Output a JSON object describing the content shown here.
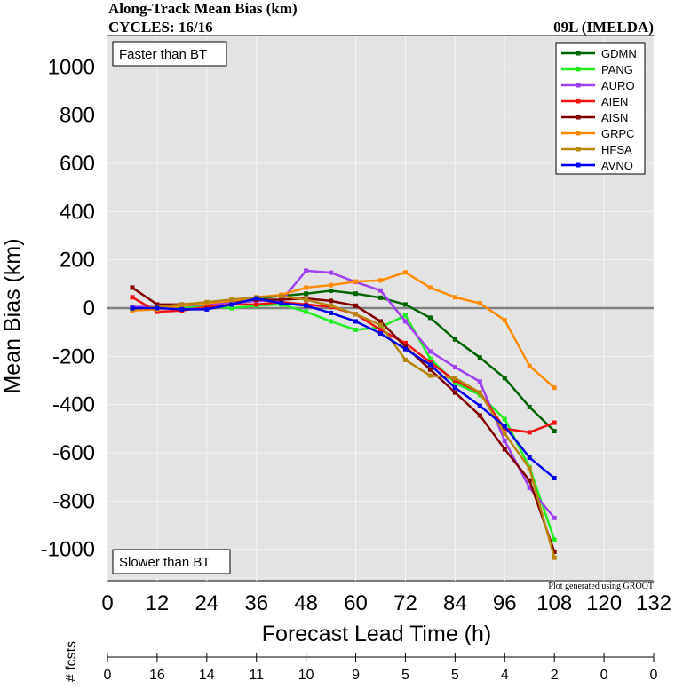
{
  "header": {
    "title": "Along-Track Mean Bias (km)",
    "cycles": "CYCLES: 16/16",
    "storm": "09L (IMELDA)"
  },
  "annotations": {
    "faster": "Faster than BT",
    "slower": "Slower than BT",
    "credit": "Plot generated using GROOT"
  },
  "fcsts": {
    "label": "# fcsts",
    "ticks": [
      0,
      12,
      24,
      36,
      48,
      60,
      72,
      84,
      96,
      108,
      120,
      132
    ],
    "counts": [
      "0",
      "16",
      "14",
      "11",
      "10",
      "9",
      "5",
      "5",
      "4",
      "2",
      "0",
      "0"
    ]
  },
  "chart_data": {
    "type": "line",
    "xlabel": "Forecast Lead Time (h)",
    "ylabel": "Mean Bias (km)",
    "xlim": [
      0,
      132
    ],
    "ylim": [
      -1130,
      1130
    ],
    "xticks": [
      0,
      12,
      24,
      36,
      48,
      60,
      72,
      84,
      96,
      108,
      120,
      132
    ],
    "yticks": [
      1000,
      800,
      600,
      400,
      200,
      0,
      -200,
      -400,
      -600,
      -800,
      -1000
    ],
    "grid": true,
    "legend_position": "top-right",
    "x": [
      6,
      12,
      18,
      24,
      30,
      36,
      42,
      48,
      54,
      60,
      66,
      72,
      78,
      84,
      90,
      96,
      102,
      108
    ],
    "series": [
      {
        "name": "GDMN",
        "color": "#006400",
        "values": [
          0,
          5,
          10,
          15,
          25,
          40,
          50,
          60,
          72,
          60,
          43,
          15,
          -40,
          -130,
          -205,
          -290,
          -410,
          -510
        ]
      },
      {
        "name": "PANG",
        "color": "#22ee22",
        "values": [
          -5,
          5,
          5,
          10,
          0,
          10,
          15,
          -15,
          -55,
          -90,
          -80,
          -30,
          -210,
          -310,
          -360,
          -460,
          -660,
          -960
        ]
      },
      {
        "name": "AURO",
        "color": "#a040f0",
        "values": [
          5,
          5,
          10,
          15,
          20,
          30,
          30,
          155,
          147,
          108,
          73,
          -55,
          -180,
          -245,
          -305,
          -550,
          -745,
          -870
        ]
      },
      {
        "name": "AIEN",
        "color": "#ee1111",
        "values": [
          45,
          -15,
          -10,
          5,
          15,
          15,
          25,
          15,
          5,
          -25,
          -90,
          -145,
          -225,
          -300,
          -350,
          -500,
          -515,
          -475
        ]
      },
      {
        "name": "AISN",
        "color": "#800000",
        "values": [
          85,
          15,
          15,
          20,
          30,
          35,
          35,
          40,
          30,
          10,
          -55,
          -160,
          -255,
          -350,
          -445,
          -585,
          -715,
          -1010
        ]
      },
      {
        "name": "GRPC",
        "color": "#ff8c00",
        "values": [
          -10,
          -5,
          10,
          20,
          30,
          45,
          55,
          85,
          95,
          110,
          115,
          148,
          85,
          45,
          20,
          -50,
          -240,
          -330
        ]
      },
      {
        "name": "HFSA",
        "color": "#b8860b",
        "values": [
          -5,
          5,
          15,
          25,
          35,
          45,
          50,
          35,
          10,
          -25,
          -70,
          -215,
          -280,
          -290,
          -350,
          -520,
          -665,
          -1035
        ]
      },
      {
        "name": "AVNO",
        "color": "#0000ee",
        "values": [
          0,
          0,
          -5,
          -5,
          15,
          40,
          20,
          10,
          -20,
          -55,
          -105,
          -170,
          -235,
          -330,
          -405,
          -490,
          -620,
          -705
        ]
      }
    ]
  }
}
